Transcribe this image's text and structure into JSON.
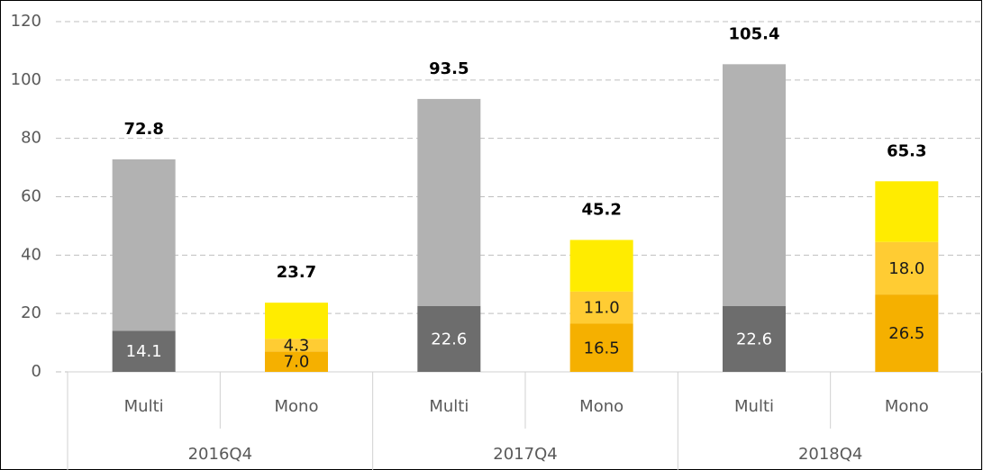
{
  "chart_data": {
    "type": "stacked_bar",
    "categories": [
      "Multi",
      "Mono",
      "Multi",
      "Mono",
      "Multi",
      "Mono"
    ],
    "groups": [
      "2016Q4",
      "2017Q4",
      "2018Q4"
    ],
    "series": [
      {
        "color": "#6d6d6d",
        "label_color": "#ffffff",
        "values": [
          14.1,
          null,
          22.6,
          null,
          22.6,
          null
        ],
        "value_labels": [
          "14.1",
          null,
          "22.6",
          null,
          "22.6",
          null
        ]
      },
      {
        "color": "#f5b000",
        "label_color": "#1a1a1a",
        "values": [
          null,
          7.0,
          null,
          16.5,
          null,
          26.5
        ],
        "value_labels": [
          null,
          "7.0",
          null,
          "16.5",
          null,
          "26.5"
        ]
      },
      {
        "color": "#b2b2b2",
        "values": [
          58.7,
          null,
          70.9,
          null,
          82.8,
          null
        ]
      },
      {
        "color": "#ffcc33",
        "label_color": "#1a1a1a",
        "values": [
          null,
          4.3,
          null,
          11.0,
          null,
          18.0
        ],
        "value_labels": [
          null,
          "4.3",
          null,
          "11.0",
          null,
          "18.0"
        ]
      },
      {
        "color": "#ffec00",
        "values": [
          null,
          12.4,
          null,
          17.7,
          null,
          20.8
        ]
      }
    ],
    "totals": [
      72.8,
      23.7,
      93.5,
      45.2,
      105.4,
      65.3
    ],
    "ylim": [
      0,
      120
    ],
    "yticks": [
      0,
      20,
      40,
      60,
      80,
      100,
      120
    ],
    "grid": true
  }
}
